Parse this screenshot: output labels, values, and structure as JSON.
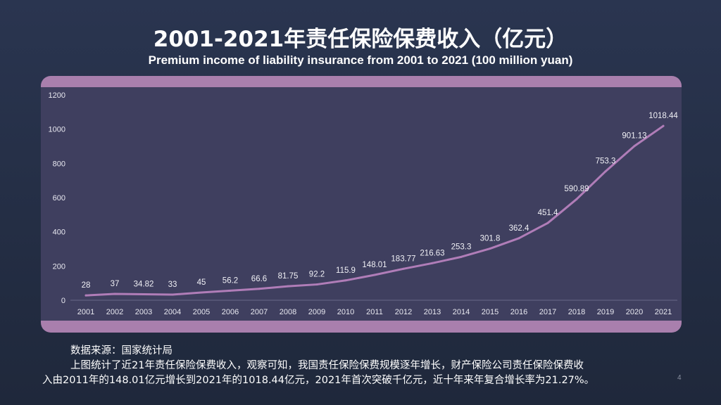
{
  "title": "2001-2021年责任保险保费收入（亿元）",
  "subtitle": "Premium income of liability insurance from 2001 to 2021 (100 million yuan)",
  "source": "数据来源：国家统计局",
  "paragraph_line1": "上图统计了近21年责任保险保费收入，观察可知，我国责任保险保费规模逐年增长，财产保险公司责任保险保费收",
  "paragraph_line2": "入由2011年的148.01亿元增长到2021年的1018.44亿元，2021年首次突破千亿元，近十年来年复合增长率为21.27%。",
  "page_number": "4",
  "chart_data": {
    "type": "line",
    "categories": [
      "2001",
      "2002",
      "2003",
      "2004",
      "2005",
      "2006",
      "2007",
      "2008",
      "2009",
      "2010",
      "2011",
      "2012",
      "2013",
      "2014",
      "2015",
      "2016",
      "2017",
      "2018",
      "2019",
      "2020",
      "2021"
    ],
    "values": [
      28,
      37,
      34.82,
      33,
      45,
      56.2,
      66.6,
      81.75,
      92.2,
      115.9,
      148.01,
      183.77,
      216.63,
      253.3,
      301.8,
      362.4,
      451.4,
      590.89,
      753.3,
      901.13,
      1018.44
    ],
    "labels": [
      "28",
      "37",
      "34.82",
      "33",
      "45",
      "56.2",
      "66.6",
      "81.75",
      "92.2",
      "115.9",
      "148.01",
      "183.77",
      "216.63",
      "253.3",
      "301.8",
      "362.4",
      "451.4",
      "590.89",
      "753.3",
      "901.13",
      "1018.44"
    ],
    "yticks": [
      "0",
      "200",
      "400",
      "600",
      "800",
      "1000",
      "1200"
    ],
    "ylim": [
      0,
      1200
    ],
    "grid": false,
    "line_color": "#b07db8",
    "plot_bg": "#3f3f5f",
    "frame_color": "#a97fad"
  }
}
